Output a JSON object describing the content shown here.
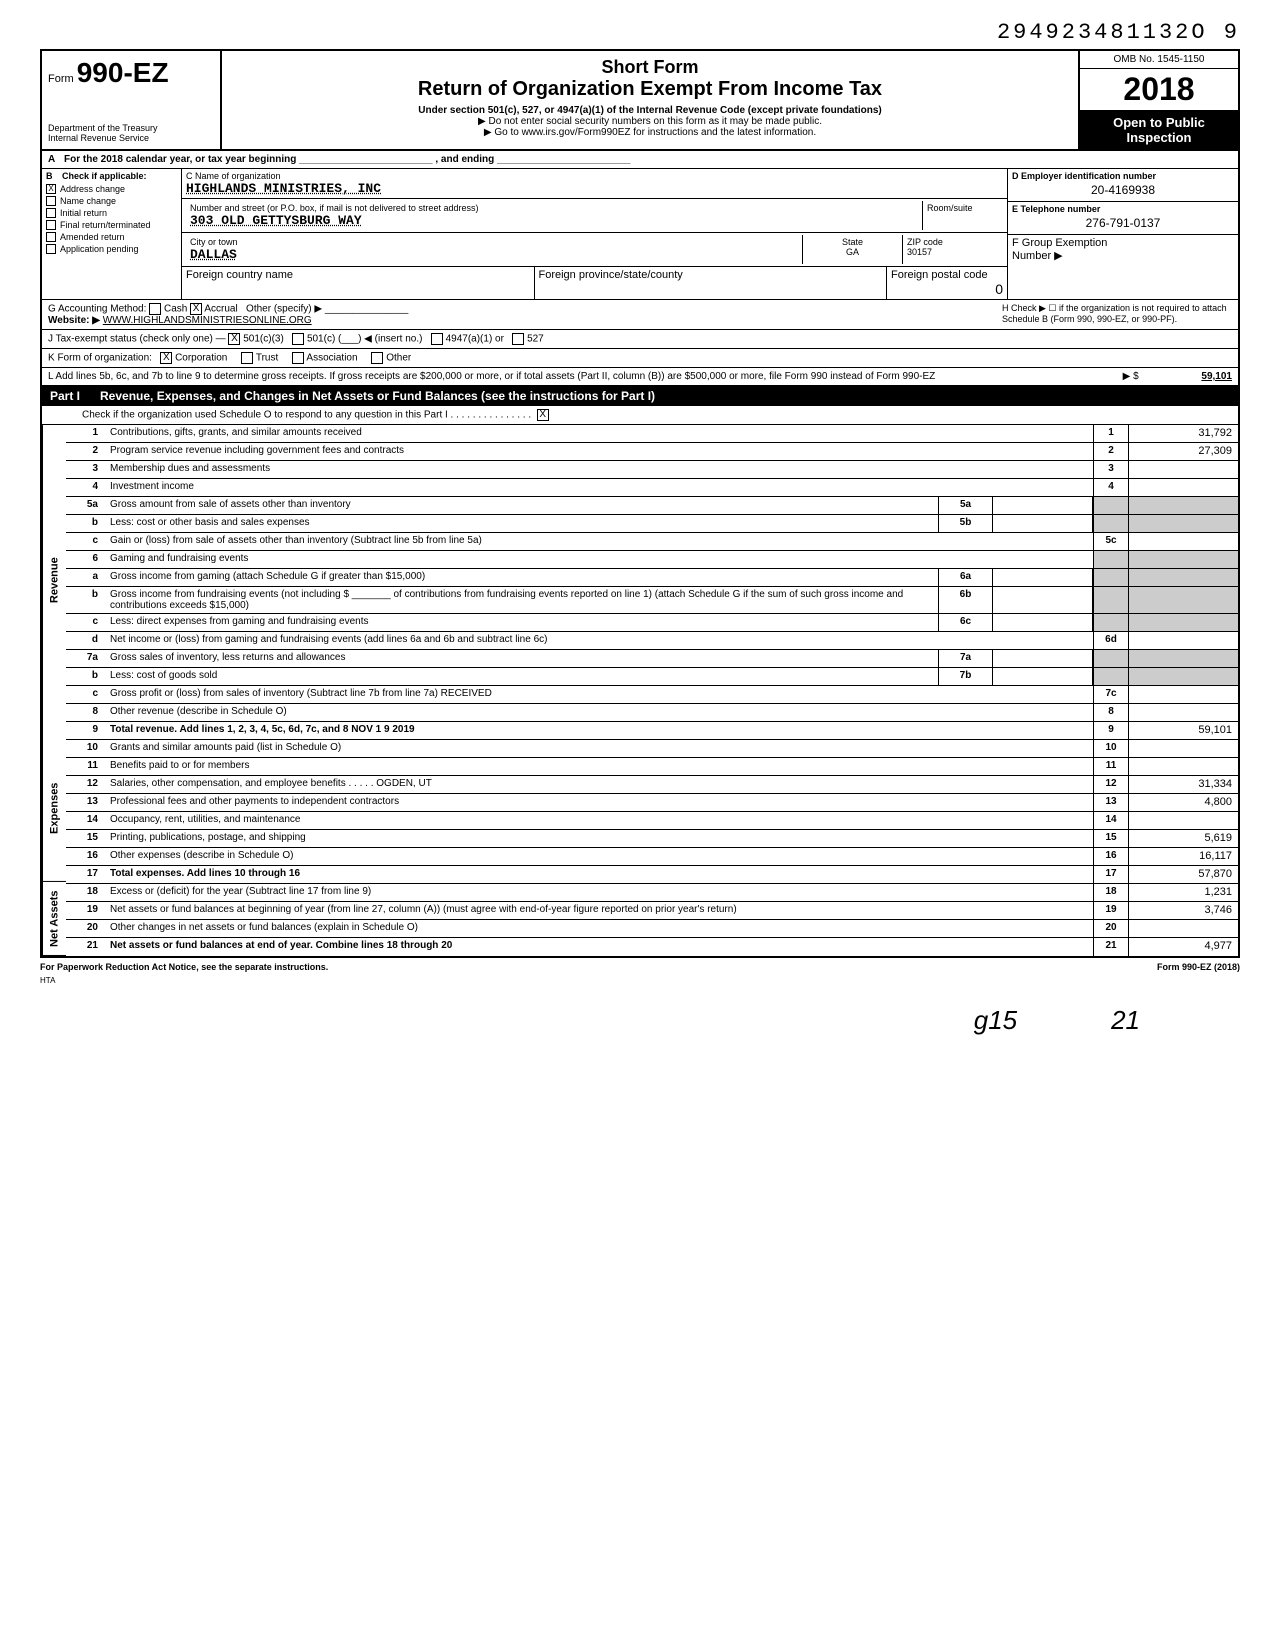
{
  "top_stamp": "294923481132O 9",
  "form": {
    "prefix": "Form",
    "number": "990-EZ",
    "dept1": "Department of the Treasury",
    "dept2": "Internal Revenue Service"
  },
  "header": {
    "line1": "Short Form",
    "line2": "Return of Organization Exempt From Income Tax",
    "line3": "Under section 501(c), 527, or 4947(a)(1) of the Internal Revenue Code (except private foundations)",
    "line4": "▶ Do not enter social security numbers on this form as it may be made public.",
    "line5": "▶ Go to www.irs.gov/Form990EZ for instructions and the latest information."
  },
  "right": {
    "omb": "OMB No. 1545-1150",
    "year": "2018",
    "open1": "Open to Public",
    "open2": "Inspection"
  },
  "rowA": "For the 2018 calendar year, or tax year beginning ________________________ , and ending ________________________",
  "colB": {
    "header": "Check if applicable:",
    "items": [
      "Address change",
      "Name change",
      "Initial return",
      "Final return/terminated",
      "Amended return",
      "Application pending"
    ],
    "checked": [
      true,
      false,
      false,
      false,
      false,
      false
    ]
  },
  "colC": {
    "name_lbl": "C  Name of organization",
    "name": "HIGHLANDS MINISTRIES, INC",
    "addr_lbl": "Number and street (or P.O. box, if mail is not delivered to street address)",
    "room_lbl": "Room/suite",
    "addr": "303 OLD GETTYSBURG WAY",
    "city_lbl": "City or town",
    "city": "DALLAS",
    "state_lbl": "State",
    "state": "GA",
    "zip_lbl": "ZIP code",
    "zip": "30157",
    "foreign_country_lbl": "Foreign country name",
    "foreign_prov_lbl": "Foreign province/state/county",
    "foreign_postal_lbl": "Foreign postal code",
    "foreign_postal": "0"
  },
  "colD": {
    "ein_lbl": "D  Employer identification number",
    "ein": "20-4169938",
    "tel_lbl": "E  Telephone number",
    "tel": "276-791-0137",
    "group_lbl": "F  Group Exemption",
    "group2": "Number ▶"
  },
  "rowG": {
    "label": "G  Accounting Method:",
    "cash": "Cash",
    "accrual": "Accrual",
    "other": "Other (specify) ▶",
    "website_lbl": "Website: ▶",
    "website": "WWW.HIGHLANDSMINISTRIESONLINE.ORG"
  },
  "rowH": "H  Check ▶ ☐ if the organization is not required to attach Schedule B (Form 990, 990-EZ, or 990-PF).",
  "rowJ": {
    "label": "J  Tax-exempt status (check only one) —",
    "c3": "501(c)(3)",
    "c": "501(c) (",
    "insert": ") ◀ (insert no.)",
    "a947": "4947(a)(1) or",
    "s527": "527"
  },
  "rowK": {
    "label": "K  Form of organization:",
    "corp": "Corporation",
    "trust": "Trust",
    "assoc": "Association",
    "other": "Other"
  },
  "rowL": {
    "text": "L  Add lines 5b, 6c, and 7b to line 9 to determine gross receipts. If gross receipts are $200,000 or more, or if total assets (Part II, column (B)) are $500,000 or more, file Form 990 instead of Form 990-EZ",
    "arrow": "▶ $",
    "value": "59,101"
  },
  "part1": {
    "label": "Part I",
    "title": "Revenue, Expenses, and Changes in Net Assets or Fund Balances (see the instructions for Part I)",
    "check": "Check if the organization used Schedule O to respond to any question in this Part I",
    "checked": "X"
  },
  "sections": {
    "revenue": "Revenue",
    "expenses": "Expenses",
    "netassets": "Net Assets"
  },
  "lines": [
    {
      "n": "1",
      "d": "Contributions, gifts, grants, and similar amounts received",
      "box": "1",
      "v": "31,792"
    },
    {
      "n": "2",
      "d": "Program service revenue including government fees and contracts",
      "box": "2",
      "v": "27,309"
    },
    {
      "n": "3",
      "d": "Membership dues and assessments",
      "box": "3",
      "v": ""
    },
    {
      "n": "4",
      "d": "Investment income",
      "box": "4",
      "v": ""
    },
    {
      "n": "5a",
      "d": "Gross amount from sale of assets other than inventory",
      "mid": "5a"
    },
    {
      "n": "b",
      "d": "Less: cost or other basis and sales expenses",
      "mid": "5b"
    },
    {
      "n": "c",
      "d": "Gain or (loss) from sale of assets other than inventory (Subtract line 5b from line 5a)",
      "box": "5c",
      "v": ""
    },
    {
      "n": "6",
      "d": "Gaming and fundraising events"
    },
    {
      "n": "a",
      "d": "Gross income from gaming (attach Schedule G if greater than $15,000)",
      "mid": "6a"
    },
    {
      "n": "b",
      "d": "Gross income from fundraising events (not including    $ _______ of contributions from fundraising events reported on line 1) (attach Schedule G if the sum of such gross income and contributions exceeds $15,000)",
      "mid": "6b"
    },
    {
      "n": "c",
      "d": "Less: direct expenses from gaming and fundraising events",
      "mid": "6c"
    },
    {
      "n": "d",
      "d": "Net income or (loss) from gaming and fundraising events (add lines 6a and 6b and subtract line 6c)",
      "box": "6d",
      "v": ""
    },
    {
      "n": "7a",
      "d": "Gross sales of inventory, less returns and allowances",
      "mid": "7a"
    },
    {
      "n": "b",
      "d": "Less: cost of goods sold",
      "mid": "7b"
    },
    {
      "n": "c",
      "d": "Gross profit or (loss) from sales of inventory (Subtract line 7b from line 7a) RECEIVED",
      "box": "7c",
      "v": ""
    },
    {
      "n": "8",
      "d": "Other revenue (describe in Schedule O)",
      "box": "8",
      "v": ""
    },
    {
      "n": "9",
      "d": "Total revenue. Add lines 1, 2, 3, 4, 5c, 6d, 7c, and 8        NOV 1 9 2019",
      "box": "9",
      "v": "59,101",
      "bold": true
    },
    {
      "n": "10",
      "d": "Grants and similar amounts paid (list in Schedule O)",
      "box": "10",
      "v": ""
    },
    {
      "n": "11",
      "d": "Benefits paid to or for members",
      "box": "11",
      "v": ""
    },
    {
      "n": "12",
      "d": "Salaries, other compensation, and employee benefits . . . . .   OGDEN, UT",
      "box": "12",
      "v": "31,334"
    },
    {
      "n": "13",
      "d": "Professional fees and other payments to independent contractors",
      "box": "13",
      "v": "4,800"
    },
    {
      "n": "14",
      "d": "Occupancy, rent, utilities, and maintenance",
      "box": "14",
      "v": ""
    },
    {
      "n": "15",
      "d": "Printing, publications, postage, and shipping",
      "box": "15",
      "v": "5,619"
    },
    {
      "n": "16",
      "d": "Other expenses (describe in Schedule O)",
      "box": "16",
      "v": "16,117"
    },
    {
      "n": "17",
      "d": "Total expenses. Add lines 10 through 16",
      "box": "17",
      "v": "57,870",
      "bold": true
    },
    {
      "n": "18",
      "d": "Excess or (deficit) for the year (Subtract line 17 from line 9)",
      "box": "18",
      "v": "1,231"
    },
    {
      "n": "19",
      "d": "Net assets or fund balances at beginning of year (from line 27, column (A)) (must agree with end-of-year figure reported on prior year's return)",
      "box": "19",
      "v": "3,746"
    },
    {
      "n": "20",
      "d": "Other changes in net assets or fund balances (explain in Schedule O)",
      "box": "20",
      "v": ""
    },
    {
      "n": "21",
      "d": "Net assets or fund balances at end of year. Combine lines 18 through 20",
      "box": "21",
      "v": "4,977",
      "bold": true
    }
  ],
  "footer": {
    "left": "For Paperwork Reduction Act Notice, see the separate instructions.",
    "hta": "HTA",
    "right": "Form 990-EZ (2018)"
  },
  "handwritten": {
    "g15": "g15",
    "n21": "21"
  }
}
